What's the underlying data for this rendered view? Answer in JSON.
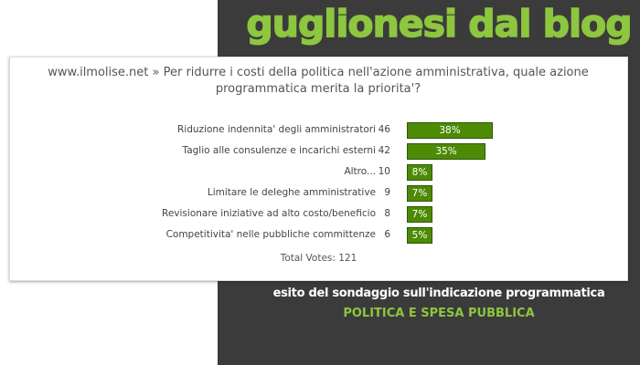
{
  "header": {
    "blog_title": "guglionesi dal blog"
  },
  "poll": {
    "question": "www.ilmolise.net » Per ridurre i costi della politica nell'azione amministrativa, quale azione programmatica merita la priorita'?",
    "total_votes": "Total Votes: 121"
  },
  "colors": {
    "accent_green": "#8dc63f",
    "bar_green": "#4d8a06",
    "dark_panel": "#3b3b3b"
  },
  "caption": {
    "line1": "esito del sondaggio sull'indicazione programmatica",
    "line2": "POLITICA E SPESA PUBBLICA"
  },
  "chart_data": {
    "type": "bar",
    "orientation": "horizontal",
    "categories": [
      "Riduzione indennita' degli amministratori",
      "Taglio alle consulenze e incarichi esterni",
      "Altro...",
      "Limitare le deleghe amministrative",
      "Revisionare iniziative ad alto costo/beneficio",
      "Competitivita' nelle pubbliche committenze"
    ],
    "votes": [
      46,
      42,
      10,
      9,
      8,
      6
    ],
    "percent_labels": [
      "38%",
      "35%",
      "8%",
      "7%",
      "7%",
      "5%"
    ],
    "percents": [
      38,
      35,
      8,
      7,
      7,
      5
    ],
    "total_votes": 121
  }
}
